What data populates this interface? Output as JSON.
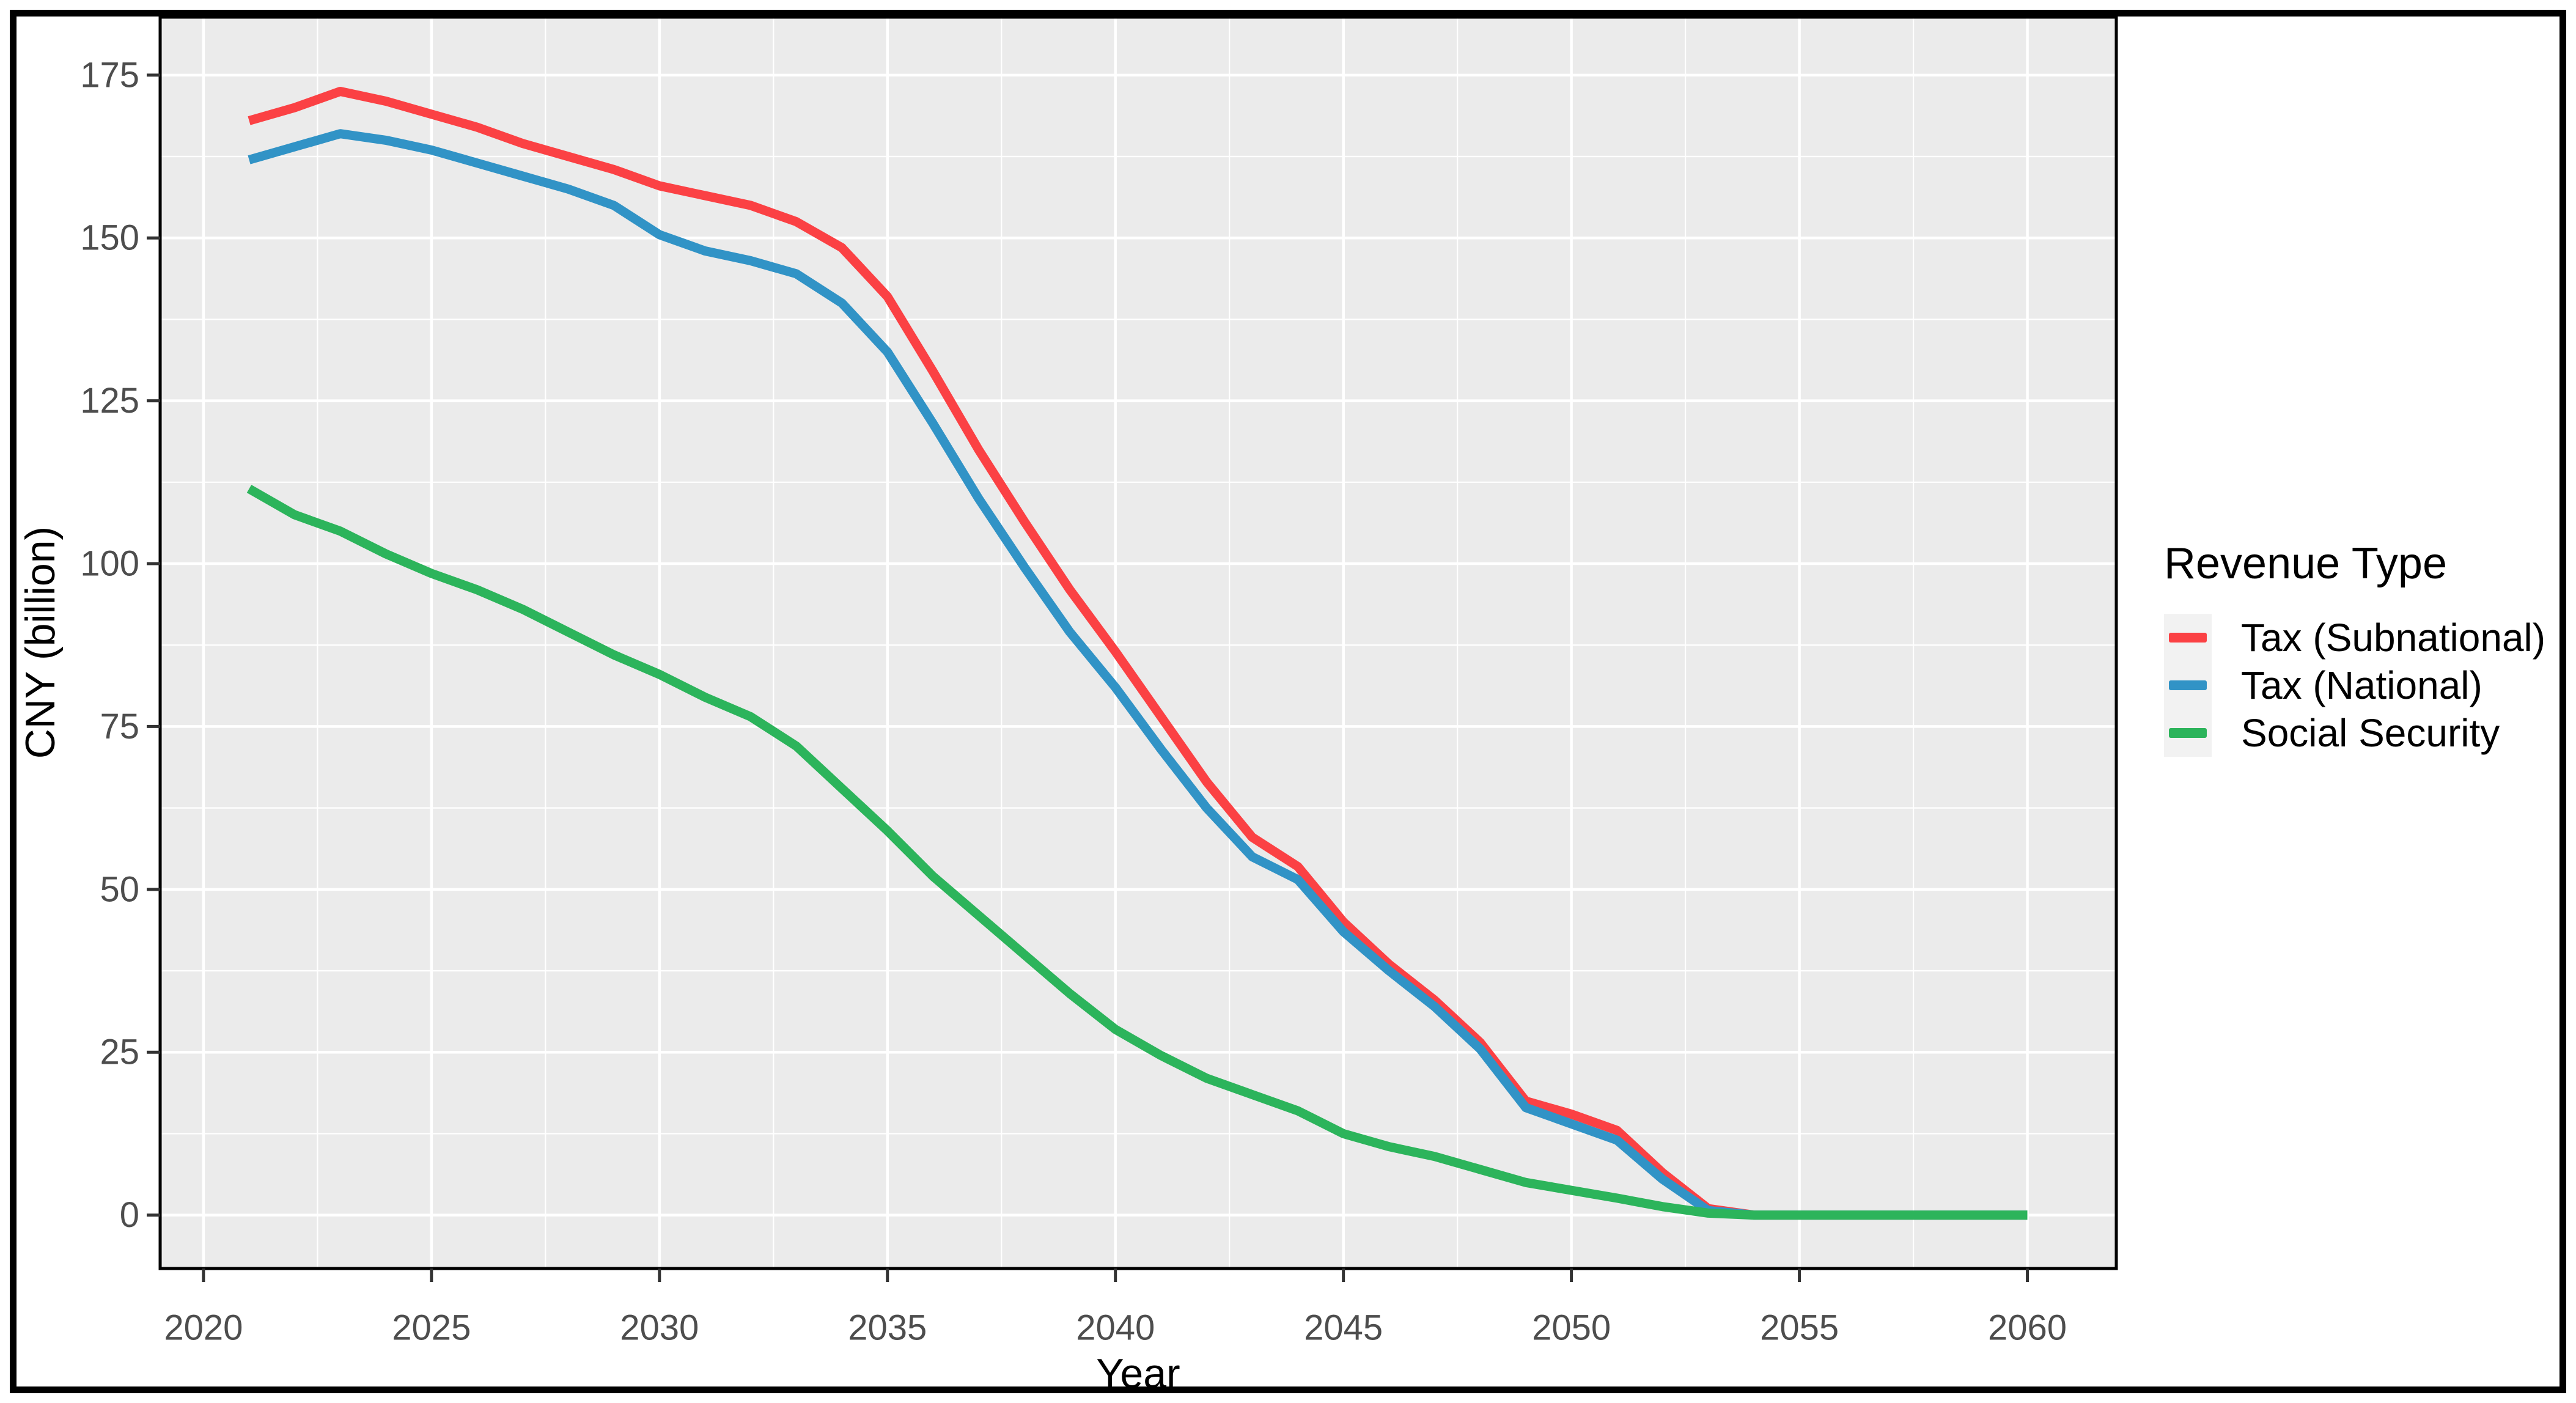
{
  "figure": {
    "background": "#ffffff",
    "border_color": "#000000",
    "panel_background": "#EBEBEB",
    "gridline_color": "#FFFFFF",
    "axis_text_color": "#4D4D4D",
    "tick_mark_color": "#333333"
  },
  "axes": {
    "x_title": "Year",
    "y_title": "CNY (billion)",
    "x_tick_labels": [
      "2020",
      "2025",
      "2030",
      "2035",
      "2040",
      "2045",
      "2050",
      "2055",
      "2060"
    ],
    "y_tick_labels": [
      "0",
      "25",
      "50",
      "75",
      "100",
      "125",
      "150",
      "175"
    ]
  },
  "legend": {
    "title": "Revenue Type",
    "items": [
      {
        "label": "Tax (Subnational)",
        "color": "#FB4144"
      },
      {
        "label": "Tax (National)",
        "color": "#3193C6"
      },
      {
        "label": "Social Security",
        "color": "#2CB45B"
      }
    ]
  },
  "chart_data": {
    "type": "line",
    "title": "",
    "xlabel": "Year",
    "ylabel": "CNY (billion)",
    "legend_title": "Revenue Type",
    "legend_position": "right",
    "grid": "white major and minor gridlines on gray panel",
    "xlim": [
      2019.05,
      2061.95
    ],
    "ylim": [
      -8.2,
      183.9
    ],
    "x_major_ticks": [
      2020,
      2025,
      2030,
      2035,
      2040,
      2045,
      2050,
      2055,
      2060
    ],
    "x_minor_ticks": [
      2022.5,
      2027.5,
      2032.5,
      2037.5,
      2042.5,
      2047.5,
      2052.5,
      2057.5
    ],
    "y_major_ticks": [
      0,
      25,
      50,
      75,
      100,
      125,
      150,
      175
    ],
    "y_minor_ticks": [
      12.5,
      37.5,
      62.5,
      87.5,
      112.5,
      137.5,
      162.5
    ],
    "x": [
      2021,
      2022,
      2023,
      2024,
      2025,
      2026,
      2027,
      2028,
      2029,
      2030,
      2031,
      2032,
      2033,
      2034,
      2035,
      2036,
      2037,
      2038,
      2039,
      2040,
      2041,
      2042,
      2043,
      2044,
      2045,
      2046,
      2047,
      2048,
      2049,
      2050,
      2051,
      2052,
      2053,
      2054,
      2055,
      2056,
      2057,
      2058,
      2059,
      2060
    ],
    "series": [
      {
        "name": "Tax (Subnational)",
        "color": "#FB4144",
        "values": [
          168,
          170,
          172.5,
          171,
          169,
          167,
          164.5,
          162.5,
          160.5,
          158,
          156.5,
          155,
          152.5,
          148.5,
          141,
          129.5,
          117.5,
          106.5,
          96,
          86.5,
          76.5,
          66.5,
          58,
          53.5,
          45,
          38.5,
          33,
          26.5,
          17.5,
          15.5,
          13,
          6.5,
          1,
          0,
          0,
          0,
          0,
          0,
          0,
          0
        ]
      },
      {
        "name": "Tax (National)",
        "color": "#3193C6",
        "values": [
          162,
          164,
          166,
          165,
          163.5,
          161.5,
          159.5,
          157.5,
          155,
          150.5,
          148,
          146.5,
          144.5,
          140,
          132.5,
          121.5,
          110,
          99.5,
          89.5,
          81,
          71.5,
          62.5,
          55,
          51.5,
          43.5,
          37.5,
          32,
          25.5,
          16.5,
          14,
          11.5,
          5.5,
          0.7,
          0,
          0,
          0,
          0,
          0,
          0,
          0
        ]
      },
      {
        "name": "Social Security",
        "color": "#2CB45B",
        "values": [
          111.5,
          107.5,
          105,
          101.5,
          98.5,
          96,
          93,
          89.5,
          86,
          83,
          79.5,
          76.5,
          72,
          65.5,
          59,
          52,
          46,
          40,
          34,
          28.5,
          24.5,
          21,
          18.5,
          16,
          12.5,
          10.5,
          9,
          7,
          5,
          3.8,
          2.6,
          1.3,
          0.3,
          0,
          0,
          0,
          0,
          0,
          0,
          0
        ]
      }
    ]
  }
}
